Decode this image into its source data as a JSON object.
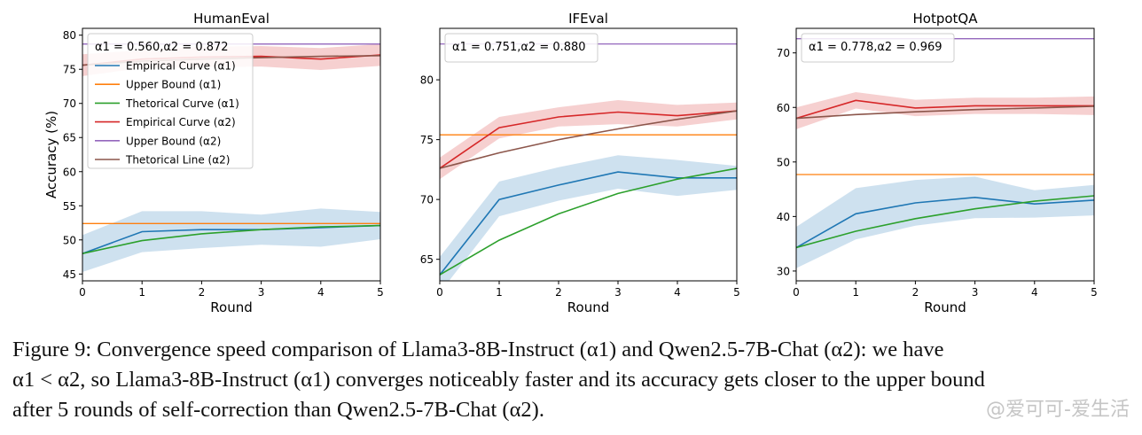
{
  "chart_data": [
    {
      "type": "line",
      "title": "HumanEval",
      "xlabel": "Round",
      "ylabel": "Accuracy (%)",
      "xlim": [
        0,
        5
      ],
      "ylim": [
        44,
        81
      ],
      "xticks": [
        0,
        1,
        2,
        3,
        4,
        5
      ],
      "yticks": [
        45,
        50,
        55,
        60,
        65,
        70,
        75,
        80
      ],
      "annotation": "α1 = 0.560,α2 = 0.872",
      "legend": "upper-left",
      "x": [
        0,
        1,
        2,
        3,
        4,
        5
      ],
      "series": [
        {
          "name": "Empirical Curve (α1)",
          "color": "#1f77b4",
          "values": [
            48.0,
            51.2,
            51.5,
            51.5,
            51.8,
            52.1
          ],
          "band_lo": [
            45.3,
            48.2,
            48.8,
            49.3,
            49.0,
            50.1
          ],
          "band_hi": [
            50.7,
            54.2,
            54.2,
            53.7,
            54.6,
            54.1
          ]
        },
        {
          "name": "Upper Bound (α1)",
          "color": "#ff7f0e",
          "values": [
            52.4,
            52.4,
            52.4,
            52.4,
            52.4,
            52.4
          ]
        },
        {
          "name": "Thetorical Curve (α1)",
          "color": "#2ca02c",
          "values": [
            48.0,
            49.9,
            50.9,
            51.5,
            51.9,
            52.1
          ]
        },
        {
          "name": "Empirical Curve (α2)",
          "color": "#d62728",
          "values": [
            75.6,
            76.5,
            76.8,
            76.9,
            76.5,
            77.1
          ],
          "band_lo": [
            74.0,
            75.2,
            75.3,
            75.4,
            74.9,
            75.5
          ],
          "band_hi": [
            77.2,
            77.8,
            78.3,
            78.4,
            78.1,
            78.7
          ]
        },
        {
          "name": "Upper Bound (α2)",
          "color": "#9467bd",
          "values": [
            78.7,
            78.7,
            78.7,
            78.7,
            78.7,
            78.7
          ]
        },
        {
          "name": "Thetorical Line (α2)",
          "color": "#8c564b",
          "values": [
            75.6,
            76.2,
            76.5,
            76.7,
            76.9,
            77.0
          ]
        }
      ]
    },
    {
      "type": "line",
      "title": "IFEval",
      "xlabel": "Round",
      "ylabel": "",
      "xlim": [
        0,
        5
      ],
      "ylim": [
        63.2,
        84.3
      ],
      "xticks": [
        0,
        1,
        2,
        3,
        4,
        5
      ],
      "yticks": [
        65,
        70,
        75,
        80
      ],
      "annotation": "α1 = 0.751,α2 = 0.880",
      "x": [
        0,
        1,
        2,
        3,
        4,
        5
      ],
      "series": [
        {
          "color": "#1f77b4",
          "values": [
            63.7,
            70.0,
            71.2,
            72.3,
            71.8,
            71.8
          ],
          "band_lo": [
            62.2,
            68.6,
            69.9,
            70.9,
            70.3,
            70.8
          ],
          "band_hi": [
            65.2,
            71.5,
            72.7,
            73.7,
            73.3,
            72.8
          ]
        },
        {
          "color": "#ff7f0e",
          "values": [
            75.4,
            75.4,
            75.4,
            75.4,
            75.4,
            75.4
          ]
        },
        {
          "color": "#2ca02c",
          "values": [
            63.7,
            66.6,
            68.8,
            70.5,
            71.7,
            72.6
          ]
        },
        {
          "color": "#d62728",
          "values": [
            72.6,
            76.0,
            76.9,
            77.3,
            77.0,
            77.4
          ],
          "band_lo": [
            71.7,
            75.1,
            76.1,
            76.3,
            76.1,
            76.7
          ],
          "band_hi": [
            73.5,
            76.9,
            77.7,
            78.3,
            77.9,
            78.1
          ]
        },
        {
          "color": "#9467bd",
          "values": [
            83.0,
            83.0,
            83.0,
            83.0,
            83.0,
            83.0
          ]
        },
        {
          "color": "#8c564b",
          "values": [
            72.6,
            73.9,
            75.0,
            75.9,
            76.7,
            77.4
          ]
        }
      ]
    },
    {
      "type": "line",
      "title": "HotpotQA",
      "xlabel": "Round",
      "ylabel": "",
      "xlim": [
        0,
        5
      ],
      "ylim": [
        28.2,
        74.5
      ],
      "xticks": [
        0,
        1,
        2,
        3,
        4,
        5
      ],
      "yticks": [
        30,
        40,
        50,
        60,
        70
      ],
      "annotation": "α1 = 0.778,α2 = 0.969",
      "x": [
        0,
        1,
        2,
        3,
        4,
        5
      ],
      "series": [
        {
          "color": "#1f77b4",
          "values": [
            34.3,
            40.5,
            42.5,
            43.5,
            42.3,
            43.0
          ],
          "band_lo": [
            30.5,
            35.8,
            38.3,
            39.7,
            39.8,
            40.2
          ],
          "band_hi": [
            38.1,
            45.2,
            46.7,
            47.3,
            44.8,
            45.8
          ]
        },
        {
          "color": "#ff7f0e",
          "values": [
            47.7,
            47.7,
            47.7,
            47.7,
            47.7,
            47.7
          ]
        },
        {
          "color": "#2ca02c",
          "values": [
            34.3,
            37.3,
            39.6,
            41.4,
            42.8,
            43.8
          ]
        },
        {
          "color": "#d62728",
          "values": [
            58.0,
            61.3,
            59.9,
            60.3,
            60.3,
            60.3
          ],
          "band_lo": [
            56.0,
            59.8,
            58.4,
            58.8,
            58.8,
            58.6
          ],
          "band_hi": [
            60.0,
            62.8,
            61.4,
            61.8,
            61.8,
            62.0
          ]
        },
        {
          "color": "#9467bd",
          "values": [
            72.6,
            72.6,
            72.6,
            72.6,
            72.6,
            72.6
          ]
        },
        {
          "color": "#8c564b",
          "values": [
            58.0,
            58.7,
            59.2,
            59.6,
            59.9,
            60.2
          ]
        }
      ]
    }
  ],
  "caption": {
    "line1": "Figure 9: Convergence speed comparison of Llama3-8B-Instruct (α1) and Qwen2.5-7B-Chat (α2): we have",
    "line2": "α1 < α2, so Llama3-8B-Instruct (α1) converges noticeably faster and its accuracy gets closer to the upper bound",
    "line3": "after 5 rounds of self-correction than Qwen2.5-7B-Chat (α2)."
  },
  "watermark": "@爱可可-爱生活"
}
